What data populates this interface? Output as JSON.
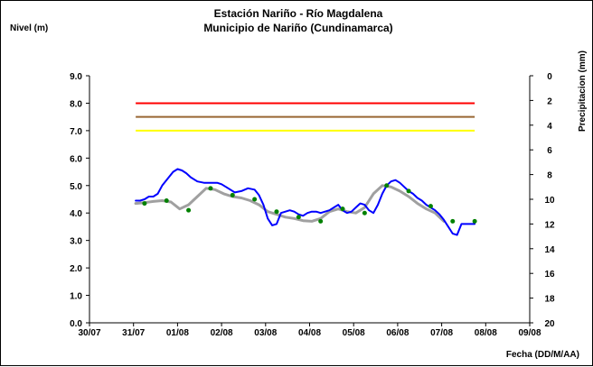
{
  "chart_data": {
    "type": "line",
    "title": "Estación Nariño  - Río Magdalena",
    "subtitle": "Municipio de Nariño (Cundinamarca)",
    "ylabel": "Nivel (m)",
    "y2label": "Precipitacion (mm)",
    "xlabel": "Fecha (DD/M/AA)",
    "ylim": [
      0,
      9
    ],
    "y2lim": [
      0,
      20
    ],
    "y2_inverted": true,
    "xlim": [
      0,
      10
    ],
    "x_ticks": [
      "30/07",
      "31/07",
      "01/08",
      "02/08",
      "03/08",
      "04/08",
      "05/08",
      "06/08",
      "07/08",
      "08/08",
      "09/08"
    ],
    "y_ticks": [
      "0.0",
      "1.0",
      "2.0",
      "3.0",
      "4.0",
      "5.0",
      "6.0",
      "7.0",
      "8.0",
      "9.0"
    ],
    "y2_ticks": [
      "0",
      "2",
      "4",
      "6",
      "8",
      "10",
      "12",
      "14",
      "16",
      "18",
      "20"
    ],
    "grid": false,
    "thresholds": [
      {
        "value": 8.0,
        "color": "#ff0000"
      },
      {
        "value": 7.5,
        "color": "#996633"
      },
      {
        "value": 7.0,
        "color": "#ffff00"
      }
    ],
    "threshold_range": [
      1.05,
      8.75
    ],
    "series": [
      {
        "name": "",
        "color": "#0000ff",
        "x": [
          1.05,
          1.15,
          1.25,
          1.35,
          1.45,
          1.55,
          1.65,
          1.8,
          1.9,
          2.0,
          2.1,
          2.2,
          2.3,
          2.45,
          2.6,
          2.75,
          2.9,
          3.0,
          3.1,
          3.2,
          3.3,
          3.45,
          3.6,
          3.75,
          3.85,
          3.95,
          4.05,
          4.15,
          4.25,
          4.35,
          4.45,
          4.55,
          4.65,
          4.75,
          4.85,
          4.95,
          5.05,
          5.15,
          5.25,
          5.35,
          5.45,
          5.55,
          5.65,
          5.75,
          5.85,
          5.95,
          6.05,
          6.15,
          6.25,
          6.35,
          6.45,
          6.55,
          6.65,
          6.75,
          6.85,
          6.95,
          7.05,
          7.15,
          7.25,
          7.35,
          7.45,
          7.55,
          7.65,
          7.75,
          7.85,
          7.95,
          8.05,
          8.15,
          8.25,
          8.35,
          8.45,
          8.55,
          8.65,
          8.75
        ],
        "values": [
          4.45,
          4.45,
          4.5,
          4.6,
          4.6,
          4.7,
          5.0,
          5.3,
          5.5,
          5.6,
          5.55,
          5.45,
          5.3,
          5.15,
          5.1,
          5.1,
          5.1,
          5.05,
          4.95,
          4.85,
          4.75,
          4.8,
          4.9,
          4.85,
          4.65,
          4.3,
          3.8,
          3.55,
          3.6,
          4.0,
          4.05,
          4.1,
          4.05,
          3.95,
          3.9,
          4.0,
          4.05,
          4.05,
          4.0,
          4.05,
          4.1,
          4.2,
          4.3,
          4.1,
          4.0,
          4.05,
          4.2,
          4.35,
          4.3,
          4.1,
          4.0,
          4.3,
          4.7,
          5.0,
          5.15,
          5.2,
          5.1,
          4.95,
          4.8,
          4.7,
          4.55,
          4.45,
          4.3,
          4.2,
          4.1,
          3.95,
          3.75,
          3.5,
          3.25,
          3.2,
          3.6,
          3.6,
          3.6,
          3.6
        ]
      },
      {
        "name": "",
        "color": "#a0a0a0",
        "x": [
          1.05,
          1.25,
          1.45,
          1.65,
          1.85,
          2.05,
          2.25,
          2.45,
          2.65,
          2.85,
          3.05,
          3.25,
          3.45,
          3.65,
          3.85,
          4.05,
          4.25,
          4.45,
          4.65,
          4.85,
          5.05,
          5.25,
          5.45,
          5.65,
          5.85,
          6.05,
          6.25,
          6.45,
          6.65,
          6.85,
          7.05,
          7.25,
          7.45,
          7.65,
          7.85,
          8.05
        ],
        "values": [
          4.35,
          4.38,
          4.42,
          4.45,
          4.4,
          4.15,
          4.3,
          4.6,
          4.9,
          4.85,
          4.7,
          4.6,
          4.55,
          4.45,
          4.3,
          4.05,
          3.95,
          3.85,
          3.8,
          3.72,
          3.7,
          3.8,
          4.05,
          4.15,
          4.05,
          4.0,
          4.2,
          4.7,
          5.0,
          4.95,
          4.8,
          4.6,
          4.35,
          4.15,
          4.0,
          3.7
        ]
      }
    ],
    "points": {
      "color": "#008000",
      "x": [
        1.25,
        1.75,
        2.25,
        2.75,
        3.25,
        3.75,
        4.25,
        4.75,
        5.25,
        5.75,
        6.25,
        6.75,
        7.25,
        7.75,
        8.25,
        8.75
      ],
      "values": [
        4.35,
        4.45,
        4.1,
        4.9,
        4.65,
        4.5,
        4.05,
        3.85,
        3.7,
        4.15,
        4.0,
        5.0,
        4.8,
        4.25,
        3.7,
        3.7
      ]
    }
  }
}
